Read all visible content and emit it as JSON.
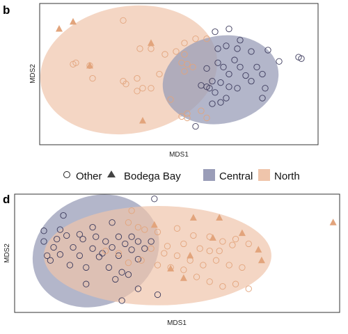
{
  "legend": {
    "shape_other": "Other",
    "shape_bodega": "Bodega Bay",
    "fill_central": "Central",
    "fill_north": "North"
  },
  "colors": {
    "central_fill": "#9a9db8",
    "north_fill": "#efc5ab",
    "central_point": "#3c3a5c",
    "north_point": "#e2a47c",
    "frame": "#333333"
  },
  "chart_data": [
    {
      "type": "scatter",
      "panel": "b",
      "xlabel": "MDS1",
      "ylabel": "MDS2",
      "xlim": [
        0,
        100
      ],
      "ylim": [
        0,
        100
      ],
      "ticks": false,
      "ellipses": [
        {
          "group": "North",
          "cx": 32,
          "cy": 53,
          "rx": 32,
          "ry": 45,
          "rotate": -10
        },
        {
          "group": "Central",
          "cx": 65,
          "cy": 46,
          "rx": 21,
          "ry": 31,
          "rotate": -12
        }
      ],
      "series": [
        {
          "name": "North",
          "shape": "Other",
          "points": [
            [
              30,
              88
            ],
            [
              56,
              75
            ],
            [
              60,
              75
            ],
            [
              52,
              72
            ],
            [
              36,
              68
            ],
            [
              40,
              68
            ],
            [
              49,
              66
            ],
            [
              52,
              64
            ],
            [
              45,
              64
            ],
            [
              51,
              58
            ],
            [
              53,
              57
            ],
            [
              55,
              55
            ],
            [
              18,
              56
            ],
            [
              12,
              57
            ],
            [
              19,
              47
            ],
            [
              35,
              47
            ],
            [
              30,
              45
            ],
            [
              31,
              43
            ],
            [
              37,
              40
            ],
            [
              40,
              40
            ],
            [
              35,
              38
            ],
            [
              13,
              58
            ],
            [
              51,
              20
            ],
            [
              53,
              22
            ],
            [
              53,
              19
            ],
            [
              60,
              19
            ],
            [
              58,
              24
            ],
            [
              47,
              32
            ],
            [
              43,
              50
            ],
            [
              52,
              52
            ]
          ]
        },
        {
          "name": "North",
          "shape": "Bodega Bay",
          "points": [
            [
              7,
              82
            ],
            [
              12,
              87
            ],
            [
              40,
              72
            ],
            [
              18,
              56
            ],
            [
              37,
              17
            ]
          ]
        },
        {
          "name": "Central",
          "shape": "Other",
          "points": [
            [
              63,
              80
            ],
            [
              68,
              82
            ],
            [
              72,
              74
            ],
            [
              67,
              70
            ],
            [
              64,
              68
            ],
            [
              71,
              68
            ],
            [
              76,
              66
            ],
            [
              82,
              67
            ],
            [
              86,
              59
            ],
            [
              93,
              62
            ],
            [
              94,
              61
            ],
            [
              78,
              55
            ],
            [
              72,
              55
            ],
            [
              66,
              55
            ],
            [
              60,
              54
            ],
            [
              64,
              58
            ],
            [
              68,
              50
            ],
            [
              74,
              49
            ],
            [
              80,
              50
            ],
            [
              62,
              45
            ],
            [
              65,
              44
            ],
            [
              58,
              42
            ],
            [
              61,
              40
            ],
            [
              68,
              41
            ],
            [
              63,
              37
            ],
            [
              67,
              33
            ],
            [
              71,
              40
            ],
            [
              76,
              45
            ],
            [
              81,
              40
            ],
            [
              80,
              33
            ],
            [
              65,
              30
            ],
            [
              62,
              29
            ],
            [
              56,
              13
            ],
            [
              60,
              41
            ],
            [
              70,
              60
            ]
          ]
        }
      ]
    },
    {
      "type": "scatter",
      "panel": "d",
      "xlabel": "MDS1",
      "ylabel": "MDS2",
      "xlim": [
        0,
        100
      ],
      "ylim": [
        0,
        100
      ],
      "ticks": false,
      "ellipses": [
        {
          "group": "Central",
          "cx": 25,
          "cy": 52,
          "rx": 20,
          "ry": 46,
          "rotate": -25
        },
        {
          "group": "North",
          "cx": 44,
          "cy": 48,
          "rx": 35,
          "ry": 42,
          "rotate": 0
        }
      ],
      "series": [
        {
          "name": "Central",
          "shape": "Other",
          "points": [
            [
              43,
              96
            ],
            [
              15,
              82
            ],
            [
              30,
              76
            ],
            [
              24,
              72
            ],
            [
              14,
              70
            ],
            [
              9,
              69
            ],
            [
              16,
              65
            ],
            [
              20,
              66
            ],
            [
              25,
              64
            ],
            [
              32,
              64
            ],
            [
              36,
              64
            ],
            [
              13,
              62
            ],
            [
              21,
              62
            ],
            [
              28,
              60
            ],
            [
              34,
              58
            ],
            [
              38,
              60
            ],
            [
              42,
              60
            ],
            [
              9,
              60
            ],
            [
              12,
              55
            ],
            [
              18,
              55
            ],
            [
              24,
              54
            ],
            [
              30,
              55
            ],
            [
              36,
              53
            ],
            [
              40,
              54
            ],
            [
              14,
              49
            ],
            [
              20,
              48
            ],
            [
              26,
              47
            ],
            [
              32,
              48
            ],
            [
              38,
              45
            ],
            [
              11,
              44
            ],
            [
              17,
              40
            ],
            [
              22,
              38
            ],
            [
              29,
              38
            ],
            [
              33,
              34
            ],
            [
              35,
              32
            ],
            [
              31,
              28
            ],
            [
              22,
              24
            ],
            [
              38,
              20
            ],
            [
              44,
              15
            ],
            [
              33,
              10
            ],
            [
              10,
              48
            ],
            [
              27,
              50
            ]
          ]
        },
        {
          "name": "North",
          "shape": "Other",
          "points": [
            [
              36,
              86
            ],
            [
              35,
              76
            ],
            [
              38,
              72
            ],
            [
              40,
              70
            ],
            [
              44,
              68
            ],
            [
              50,
              71
            ],
            [
              55,
              65
            ],
            [
              60,
              64
            ],
            [
              64,
              60
            ],
            [
              68,
              62
            ],
            [
              72,
              58
            ],
            [
              47,
              56
            ],
            [
              52,
              58
            ],
            [
              57,
              54
            ],
            [
              60,
              52
            ],
            [
              63,
              52
            ],
            [
              67,
              57
            ],
            [
              42,
              54
            ],
            [
              46,
              50
            ],
            [
              50,
              48
            ],
            [
              54,
              44
            ],
            [
              58,
              40
            ],
            [
              62,
              44
            ],
            [
              66,
              40
            ],
            [
              70,
              38
            ],
            [
              35,
              42
            ],
            [
              39,
              44
            ],
            [
              44,
              40
            ],
            [
              48,
              38
            ],
            [
              52,
              36
            ],
            [
              56,
              30
            ],
            [
              60,
              26
            ],
            [
              64,
              22
            ],
            [
              68,
              24
            ],
            [
              72,
              20
            ],
            [
              28,
              52
            ],
            [
              32,
              50
            ]
          ]
        },
        {
          "name": "North",
          "shape": "Bodega Bay",
          "points": [
            [
              55,
              80
            ],
            [
              63,
              80
            ],
            [
              43,
              74
            ],
            [
              61,
              63
            ],
            [
              70,
              67
            ],
            [
              75,
              53
            ],
            [
              76,
              44
            ],
            [
              54,
              48
            ],
            [
              48,
              37
            ],
            [
              52,
              29
            ],
            [
              98,
              76
            ]
          ]
        }
      ]
    }
  ]
}
